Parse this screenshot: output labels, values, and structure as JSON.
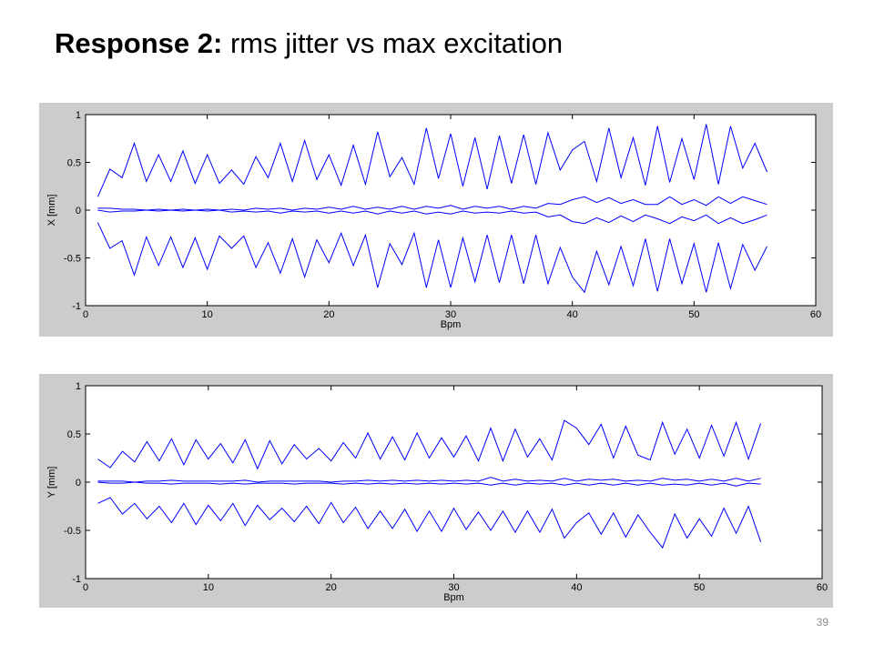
{
  "slide": {
    "title_bold": "Response 2:",
    "title_rest": "rms jitter vs max excitation",
    "page_number": "39"
  },
  "chart_data": [
    {
      "type": "line",
      "xlabel": "Bpm",
      "ylabel": "X [mm]",
      "xlim": [
        0,
        60
      ],
      "ylim": [
        -1,
        1
      ],
      "xticks": [
        "0",
        "10",
        "20",
        "30",
        "40",
        "50",
        "60"
      ],
      "yticks": [
        "1",
        "0.5",
        "0",
        "-0.5",
        "-1"
      ],
      "grid": false,
      "color": "#0000ff",
      "x": [
        1,
        2,
        3,
        4,
        5,
        6,
        7,
        8,
        9,
        10,
        11,
        12,
        13,
        14,
        15,
        16,
        17,
        18,
        19,
        20,
        21,
        22,
        23,
        24,
        25,
        26,
        27,
        28,
        29,
        30,
        31,
        32,
        33,
        34,
        35,
        36,
        37,
        38,
        39,
        40,
        41,
        42,
        43,
        44,
        45,
        46,
        47,
        48,
        49,
        50,
        51,
        52,
        53,
        54,
        55,
        56
      ],
      "series": [
        {
          "values": [
            0.14,
            0.43,
            0.34,
            0.7,
            0.3,
            0.58,
            0.3,
            0.62,
            0.28,
            0.58,
            0.28,
            0.42,
            0.27,
            0.56,
            0.34,
            0.7,
            0.3,
            0.73,
            0.32,
            0.58,
            0.26,
            0.68,
            0.27,
            0.82,
            0.35,
            0.55,
            0.27,
            0.86,
            0.33,
            0.8,
            0.25,
            0.76,
            0.22,
            0.78,
            0.28,
            0.79,
            0.27,
            0.81,
            0.42,
            0.63,
            0.72,
            0.3,
            0.86,
            0.34,
            0.76,
            0.26,
            0.88,
            0.29,
            0.75,
            0.32,
            0.9,
            0.27,
            0.88,
            0.44,
            0.7,
            0.4
          ]
        },
        {
          "values": [
            0.02,
            0.02,
            0.01,
            0.01,
            0.0,
            0.01,
            0.0,
            0.01,
            0.0,
            0.01,
            0.0,
            0.01,
            0.0,
            0.02,
            0.01,
            0.02,
            0.0,
            0.02,
            0.01,
            0.03,
            0.01,
            0.04,
            0.01,
            0.03,
            0.01,
            0.04,
            0.01,
            0.04,
            0.02,
            0.05,
            0.01,
            0.04,
            0.02,
            0.04,
            0.01,
            0.04,
            0.02,
            0.07,
            0.06,
            0.11,
            0.14,
            0.08,
            0.13,
            0.07,
            0.11,
            0.06,
            0.06,
            0.14,
            0.06,
            0.11,
            0.05,
            0.14,
            0.07,
            0.14,
            0.1,
            0.06
          ]
        },
        {
          "values": [
            0.0,
            -0.02,
            -0.01,
            -0.01,
            0.0,
            -0.01,
            0.0,
            -0.01,
            0.0,
            -0.01,
            0.0,
            -0.02,
            -0.01,
            -0.02,
            -0.01,
            -0.03,
            -0.01,
            -0.02,
            -0.01,
            -0.03,
            -0.01,
            -0.03,
            -0.01,
            -0.04,
            -0.01,
            -0.03,
            -0.01,
            -0.04,
            -0.02,
            -0.04,
            -0.01,
            -0.03,
            -0.02,
            -0.03,
            -0.01,
            -0.03,
            -0.02,
            -0.07,
            -0.05,
            -0.12,
            -0.14,
            -0.08,
            -0.13,
            -0.06,
            -0.12,
            -0.05,
            -0.09,
            -0.14,
            -0.07,
            -0.11,
            -0.05,
            -0.14,
            -0.08,
            -0.14,
            -0.1,
            -0.05
          ]
        },
        {
          "values": [
            -0.13,
            -0.4,
            -0.32,
            -0.68,
            -0.28,
            -0.58,
            -0.28,
            -0.6,
            -0.29,
            -0.62,
            -0.27,
            -0.4,
            -0.27,
            -0.6,
            -0.34,
            -0.66,
            -0.3,
            -0.7,
            -0.31,
            -0.55,
            -0.24,
            -0.58,
            -0.26,
            -0.81,
            -0.35,
            -0.57,
            -0.24,
            -0.81,
            -0.31,
            -0.81,
            -0.29,
            -0.75,
            -0.26,
            -0.76,
            -0.26,
            -0.77,
            -0.26,
            -0.77,
            -0.39,
            -0.7,
            -0.86,
            -0.43,
            -0.78,
            -0.38,
            -0.79,
            -0.3,
            -0.85,
            -0.3,
            -0.77,
            -0.35,
            -0.86,
            -0.34,
            -0.82,
            -0.36,
            -0.63,
            -0.38
          ]
        }
      ]
    },
    {
      "type": "line",
      "xlabel": "Bpm",
      "ylabel": "Y [mm]",
      "xlim": [
        0,
        60
      ],
      "ylim": [
        -1,
        1
      ],
      "xticks": [
        "0",
        "10",
        "20",
        "30",
        "40",
        "50",
        "60"
      ],
      "yticks": [
        "1",
        "0.5",
        "0",
        "-0.5",
        "-1"
      ],
      "grid": false,
      "color": "#0000ff",
      "x": [
        1,
        2,
        3,
        4,
        5,
        6,
        7,
        8,
        9,
        10,
        11,
        12,
        13,
        14,
        15,
        16,
        17,
        18,
        19,
        20,
        21,
        22,
        23,
        24,
        25,
        26,
        27,
        28,
        29,
        30,
        31,
        32,
        33,
        34,
        35,
        36,
        37,
        38,
        39,
        40,
        41,
        42,
        43,
        44,
        45,
        46,
        47,
        48,
        49,
        50,
        51,
        52,
        53,
        54,
        55
      ],
      "series": [
        {
          "values": [
            0.24,
            0.15,
            0.32,
            0.21,
            0.42,
            0.22,
            0.45,
            0.18,
            0.44,
            0.24,
            0.4,
            0.2,
            0.44,
            0.14,
            0.43,
            0.19,
            0.39,
            0.24,
            0.35,
            0.22,
            0.41,
            0.25,
            0.51,
            0.24,
            0.47,
            0.23,
            0.51,
            0.25,
            0.46,
            0.26,
            0.48,
            0.22,
            0.56,
            0.22,
            0.55,
            0.26,
            0.45,
            0.23,
            0.64,
            0.56,
            0.39,
            0.6,
            0.25,
            0.58,
            0.28,
            0.23,
            0.62,
            0.29,
            0.55,
            0.25,
            0.59,
            0.27,
            0.62,
            0.24,
            0.61
          ]
        },
        {
          "values": [
            0.01,
            0.01,
            0.01,
            0.0,
            0.01,
            0.01,
            0.02,
            0.01,
            0.01,
            0.01,
            0.01,
            0.01,
            0.02,
            0.0,
            0.01,
            0.01,
            0.01,
            0.01,
            0.01,
            0.0,
            0.01,
            0.01,
            0.02,
            0.01,
            0.02,
            0.01,
            0.02,
            0.01,
            0.02,
            0.01,
            0.02,
            0.01,
            0.05,
            0.01,
            0.03,
            0.01,
            0.02,
            0.01,
            0.04,
            0.01,
            0.03,
            0.02,
            0.03,
            0.01,
            0.02,
            0.01,
            0.04,
            0.02,
            0.03,
            0.01,
            0.03,
            0.01,
            0.04,
            0.01,
            0.04
          ]
        },
        {
          "values": [
            0.0,
            -0.01,
            -0.01,
            0.0,
            -0.01,
            -0.01,
            -0.02,
            -0.01,
            -0.01,
            -0.01,
            -0.02,
            -0.01,
            -0.02,
            -0.01,
            -0.01,
            -0.01,
            -0.02,
            -0.01,
            -0.01,
            -0.01,
            -0.02,
            -0.01,
            -0.02,
            -0.01,
            -0.02,
            -0.01,
            -0.02,
            -0.01,
            -0.02,
            -0.01,
            -0.02,
            -0.01,
            -0.03,
            -0.01,
            -0.03,
            -0.01,
            -0.02,
            -0.01,
            -0.03,
            -0.01,
            -0.03,
            -0.01,
            -0.03,
            -0.01,
            -0.03,
            -0.01,
            -0.03,
            -0.02,
            -0.03,
            -0.01,
            -0.03,
            -0.01,
            -0.04,
            -0.01,
            -0.02
          ]
        },
        {
          "values": [
            -0.22,
            -0.16,
            -0.33,
            -0.22,
            -0.38,
            -0.25,
            -0.42,
            -0.22,
            -0.44,
            -0.24,
            -0.4,
            -0.22,
            -0.45,
            -0.24,
            -0.39,
            -0.27,
            -0.41,
            -0.25,
            -0.43,
            -0.21,
            -0.42,
            -0.26,
            -0.48,
            -0.3,
            -0.48,
            -0.28,
            -0.51,
            -0.3,
            -0.51,
            -0.27,
            -0.49,
            -0.31,
            -0.5,
            -0.3,
            -0.52,
            -0.3,
            -0.52,
            -0.28,
            -0.58,
            -0.42,
            -0.32,
            -0.54,
            -0.32,
            -0.57,
            -0.34,
            -0.52,
            -0.68,
            -0.33,
            -0.58,
            -0.38,
            -0.56,
            -0.27,
            -0.53,
            -0.25,
            -0.62
          ]
        }
      ]
    }
  ]
}
